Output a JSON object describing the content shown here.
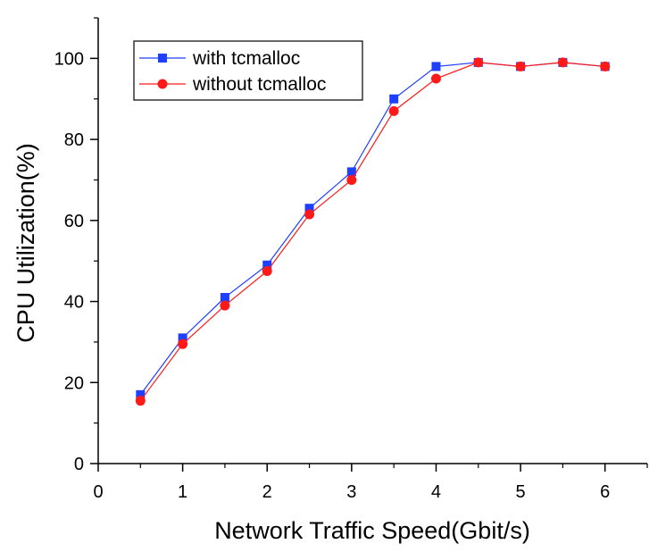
{
  "chart_data": {
    "type": "line",
    "title": "",
    "xlabel": "Network Traffic Speed(Gbit/s)",
    "ylabel": "CPU Utilization(%)",
    "xlim": [
      0,
      6.5
    ],
    "ylim": [
      0,
      110
    ],
    "xticks": [
      0,
      1,
      2,
      3,
      4,
      5,
      6
    ],
    "xtick_labels": [
      "0",
      "1",
      "2",
      "3",
      "4",
      "5",
      "6"
    ],
    "yticks": [
      0,
      20,
      40,
      60,
      80,
      100
    ],
    "ytick_labels": [
      "0",
      "20",
      "40",
      "60",
      "80",
      "100"
    ],
    "grid": false,
    "legend_position": "top-left",
    "x": [
      0.5,
      1,
      1.5,
      2,
      2.5,
      3,
      3.5,
      4,
      4.5,
      5,
      5.5,
      6
    ],
    "series": [
      {
        "name": "with tcmalloc",
        "color": "#1f3fff",
        "marker": "square",
        "values": [
          17,
          31,
          41,
          49,
          63,
          72,
          90,
          98,
          99,
          98,
          99,
          98
        ]
      },
      {
        "name": "without tcmalloc",
        "color": "#ff1a1a",
        "marker": "circle",
        "values": [
          15.5,
          29.5,
          39,
          47.5,
          61.5,
          70,
          87,
          95,
          99,
          98,
          99,
          98
        ]
      }
    ]
  }
}
